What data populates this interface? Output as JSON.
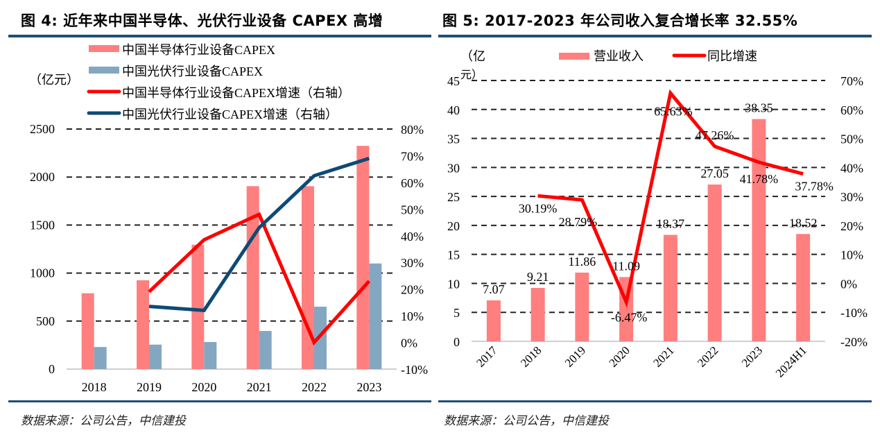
{
  "colors": {
    "semi_bar": "#ff7f7f",
    "pv_bar": "#84a7c1",
    "semi_line": "#ff0000",
    "pv_line": "#0e4a75",
    "rule": "#1f4e79",
    "grid": "#222222"
  },
  "source_text": "数据来源：公司公告，中信建投",
  "chart_data": [
    {
      "type": "bar",
      "title": "图 4: 近年来中国半导体、光伏行业设备 CAPEX 高增",
      "ylabel": "（亿元）",
      "categories": [
        "2018",
        "2019",
        "2020",
        "2021",
        "2022",
        "2023"
      ],
      "ylim": [
        0,
        2500
      ],
      "yticks": [
        "0",
        "500",
        "1000",
        "1500",
        "2000",
        "2500"
      ],
      "ylim_right": [
        -10,
        80
      ],
      "yticks_right": [
        "-10%",
        "0%",
        "10%",
        "20%",
        "30%",
        "40%",
        "50%",
        "60%",
        "70%",
        "80%"
      ],
      "grid": true,
      "legend_position": "top",
      "series": [
        {
          "name": "中国半导体行业设备CAPEX",
          "kind": "bar",
          "axis": "left",
          "values": [
            790,
            925,
            1295,
            1905,
            1905,
            2325
          ]
        },
        {
          "name": "中国光伏行业设备CAPEX",
          "kind": "bar",
          "axis": "left",
          "values": [
            230,
            255,
            282,
            397,
            650,
            1100
          ]
        },
        {
          "name": "中国半导体行业设备CAPEX增速（右轴）",
          "kind": "line",
          "axis": "right",
          "values": [
            null,
            19,
            38.5,
            48,
            0,
            23
          ]
        },
        {
          "name": "中国光伏行业设备CAPEX增速（右轴）",
          "kind": "line",
          "axis": "right",
          "values": [
            null,
            13.5,
            12,
            43,
            62.5,
            69
          ]
        }
      ]
    },
    {
      "type": "bar",
      "title": "图 5: 2017-2023 年公司收入复合增长率 32.55%",
      "ylabel": "（亿元）",
      "categories": [
        "2017",
        "2018",
        "2019",
        "2020",
        "2021",
        "2022",
        "2023",
        "2024H1"
      ],
      "ylim": [
        0,
        45
      ],
      "yticks": [
        "0",
        "5",
        "10",
        "15",
        "20",
        "25",
        "30",
        "35",
        "40",
        "45"
      ],
      "ylim_right": [
        -20,
        70
      ],
      "yticks_right": [
        "-20%",
        "-10%",
        "0%",
        "10%",
        "20%",
        "30%",
        "40%",
        "50%",
        "60%",
        "70%"
      ],
      "grid": true,
      "legend_position": "top",
      "series": [
        {
          "name": "营业收入",
          "kind": "bar",
          "axis": "left",
          "values": [
            7.07,
            9.21,
            11.86,
            11.09,
            18.37,
            27.05,
            38.35,
            18.52
          ],
          "labels": [
            "7.07",
            "9.21",
            "11.86",
            "11.09",
            "18.37",
            "27.05",
            "38.35",
            "18.52"
          ]
        },
        {
          "name": "同比增速",
          "kind": "line",
          "axis": "right",
          "values": [
            null,
            30.19,
            28.79,
            -6.47,
            65.63,
            47.26,
            41.78,
            37.78
          ],
          "labels": [
            null,
            "30.19%",
            "28.79%",
            "-6.47%",
            "65.63%",
            "47.26%",
            "41.78%",
            "37.78%"
          ]
        }
      ]
    }
  ]
}
